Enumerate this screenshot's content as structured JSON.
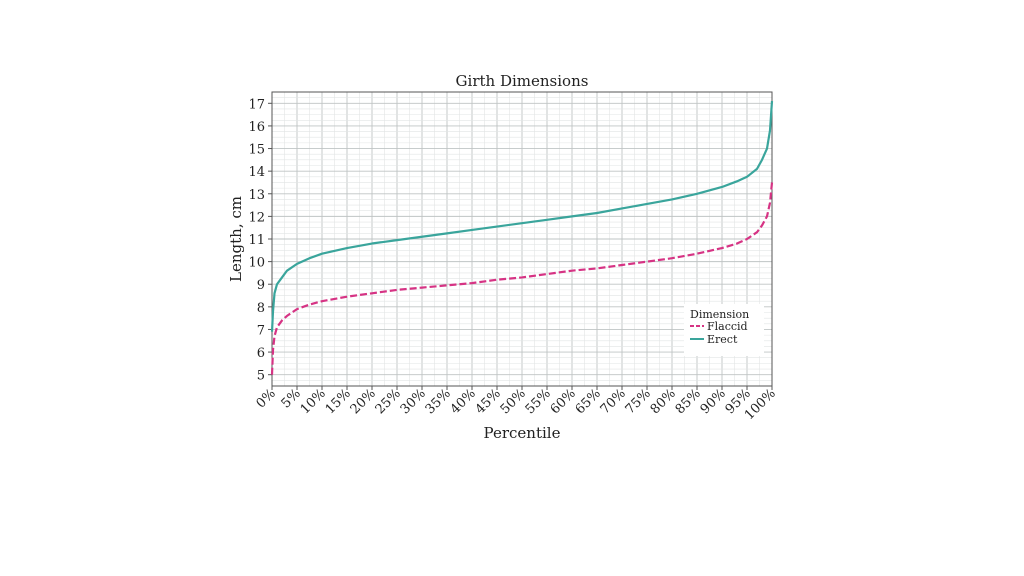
{
  "chart_data": {
    "type": "line",
    "title": "Girth Dimensions",
    "xlabel": "Percentile",
    "ylabel": "Length, cm",
    "xlim": [
      0,
      100
    ],
    "ylim": [
      4.5,
      17.5
    ],
    "x_ticks": [
      0,
      5,
      10,
      15,
      20,
      25,
      30,
      35,
      40,
      45,
      50,
      55,
      60,
      65,
      70,
      75,
      80,
      85,
      90,
      95,
      100
    ],
    "x_tick_labels": [
      "0%",
      "5%",
      "10%",
      "15%",
      "20%",
      "25%",
      "30%",
      "35%",
      "40%",
      "45%",
      "50%",
      "55%",
      "60%",
      "65%",
      "70%",
      "75%",
      "80%",
      "85%",
      "90%",
      "95%",
      "100%"
    ],
    "y_ticks": [
      5,
      6,
      7,
      8,
      9,
      10,
      11,
      12,
      13,
      14,
      15,
      16,
      17
    ],
    "y_tick_labels": [
      "5",
      "6",
      "7",
      "8",
      "9",
      "10",
      "11",
      "12",
      "13",
      "14",
      "15",
      "16",
      "17"
    ],
    "grid": true,
    "legend": {
      "title": "Dimension",
      "position": "bottom-right"
    },
    "series": [
      {
        "name": "Flaccid",
        "color": "#d63384",
        "style": "dashed",
        "x": [
          0,
          0.2,
          0.5,
          1,
          2,
          3,
          5,
          7.5,
          10,
          15,
          20,
          25,
          30,
          35,
          40,
          45,
          50,
          55,
          60,
          65,
          70,
          75,
          80,
          85,
          90,
          93,
          95,
          97,
          98,
          99,
          99.6,
          100
        ],
        "y": [
          5.0,
          6.1,
          6.7,
          7.1,
          7.4,
          7.6,
          7.9,
          8.1,
          8.25,
          8.45,
          8.6,
          8.75,
          8.85,
          8.95,
          9.05,
          9.2,
          9.3,
          9.45,
          9.6,
          9.7,
          9.85,
          10.0,
          10.15,
          10.35,
          10.6,
          10.8,
          11.0,
          11.3,
          11.6,
          12.0,
          12.6,
          13.5
        ]
      },
      {
        "name": "Erect",
        "color": "#3aa59c",
        "style": "solid",
        "x": [
          0,
          0.2,
          0.5,
          1,
          2,
          3,
          5,
          7.5,
          10,
          15,
          20,
          25,
          30,
          35,
          40,
          45,
          50,
          55,
          60,
          65,
          70,
          75,
          80,
          85,
          90,
          93,
          95,
          97,
          98,
          99,
          99.6,
          100
        ],
        "y": [
          6.9,
          7.8,
          8.6,
          9.0,
          9.3,
          9.6,
          9.9,
          10.15,
          10.35,
          10.6,
          10.8,
          10.95,
          11.1,
          11.25,
          11.4,
          11.55,
          11.7,
          11.85,
          12.0,
          12.15,
          12.35,
          12.55,
          12.75,
          13.0,
          13.3,
          13.55,
          13.75,
          14.1,
          14.5,
          15.0,
          15.8,
          17.1
        ]
      }
    ]
  }
}
